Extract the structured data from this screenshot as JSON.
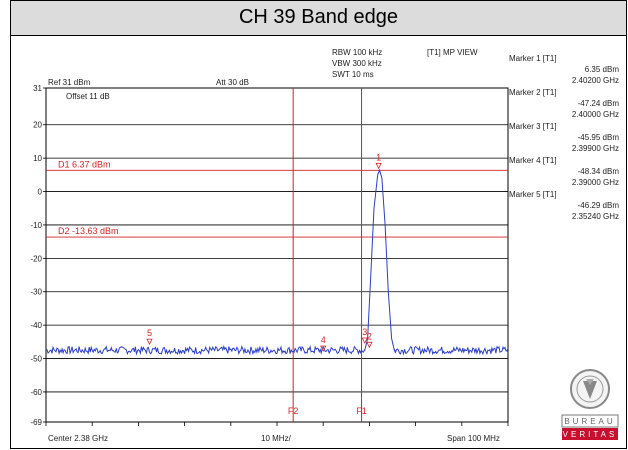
{
  "title": "CH 39 Band edge",
  "settings": {
    "rbw": "RBW 100 kHz",
    "vbw": "VBW 300 kHz",
    "swt": "SWT 10 ms",
    "mode": "[T1] MP VIEW",
    "ref": "Ref 31 dBm",
    "att": "Att 30 dB",
    "offset": "Offset 11 dB",
    "center": "Center 2.38 GHz",
    "div": "10 MHz/",
    "span": "Span 100 MHz"
  },
  "markers": [
    {
      "name": "Marker 1 [T1]",
      "level": "6.35 dBm",
      "freq": "2.40200 GHz"
    },
    {
      "name": "Marker 2 [T1]",
      "level": "-47.24 dBm",
      "freq": "2.40000 GHz"
    },
    {
      "name": "Marker 3 [T1]",
      "level": "-45.95 dBm",
      "freq": "2.39900 GHz"
    },
    {
      "name": "Marker 4 [T1]",
      "level": "-48.34 dBm",
      "freq": "2.39000 GHz"
    },
    {
      "name": "Marker 5 [T1]",
      "level": "-46.29 dBm",
      "freq": "2.35240 GHz"
    }
  ],
  "logo_text": {
    "top": "BUREAU",
    "bottom": "VERITAS"
  },
  "colors": {
    "trace": "#2b3fc8",
    "limit_lines": "#d22222",
    "grid": "#000000"
  },
  "chart_data": {
    "type": "line",
    "xlim_ghz": [
      2.33,
      2.43
    ],
    "ylim_dbm": [
      -69,
      31
    ],
    "yticks": [
      {
        "value": 31,
        "label": "31"
      },
      {
        "value": 20,
        "label": "20"
      },
      {
        "value": 10,
        "label": "10"
      },
      {
        "value": 0,
        "label": "0"
      },
      {
        "value": -10,
        "label": "-10"
      },
      {
        "value": -20,
        "label": "-20"
      },
      {
        "value": -30,
        "label": "-30"
      },
      {
        "value": -40,
        "label": "-40"
      },
      {
        "value": -50,
        "label": "-50"
      },
      {
        "value": -60,
        "label": "-60"
      },
      {
        "value": -69,
        "label": "-69"
      }
    ],
    "horizontal_lines": [
      {
        "label": "D1 6.37 dBm",
        "value": 6.37
      },
      {
        "label": "D2 -13.63 dBm",
        "value": -13.63
      }
    ],
    "vertical_lines": [
      {
        "label": "F2",
        "x_ghz": 2.3835
      },
      {
        "label": "F1",
        "x_ghz": 2.3983
      }
    ],
    "marker_points": [
      {
        "label": "1",
        "x_ghz": 2.402,
        "y_dbm": 6.35
      },
      {
        "label": "2",
        "x_ghz": 2.4,
        "y_dbm": -47.24
      },
      {
        "label": "3",
        "x_ghz": 2.399,
        "y_dbm": -45.95
      },
      {
        "label": "4",
        "x_ghz": 2.39,
        "y_dbm": -48.34
      },
      {
        "label": "5",
        "x_ghz": 2.3524,
        "y_dbm": -46.29
      }
    ],
    "series": [
      {
        "noise_floor_dbm": -47.5,
        "peak": [
          {
            "x_ghz": 2.399,
            "y_dbm": -47.5
          },
          {
            "x_ghz": 2.3996,
            "y_dbm": -44
          },
          {
            "x_ghz": 2.4003,
            "y_dbm": -25
          },
          {
            "x_ghz": 2.401,
            "y_dbm": -5
          },
          {
            "x_ghz": 2.4018,
            "y_dbm": 5
          },
          {
            "x_ghz": 2.4022,
            "y_dbm": 6.35
          },
          {
            "x_ghz": 2.4027,
            "y_dbm": 4
          },
          {
            "x_ghz": 2.4034,
            "y_dbm": -10
          },
          {
            "x_ghz": 2.4041,
            "y_dbm": -30
          },
          {
            "x_ghz": 2.4048,
            "y_dbm": -44
          },
          {
            "x_ghz": 2.4054,
            "y_dbm": -47.5
          }
        ]
      }
    ]
  }
}
